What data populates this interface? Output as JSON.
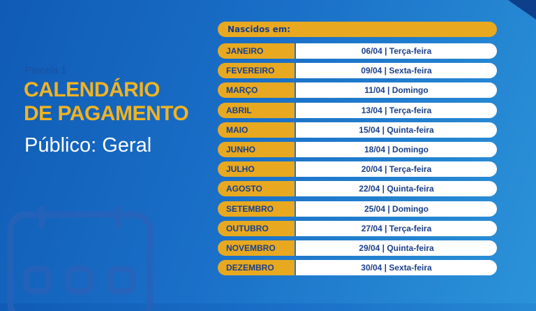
{
  "left": {
    "parcela": "Parcela 1",
    "title_line1": "CALENDÁRIO",
    "title_line2": "DE PAGAMENTO",
    "publico": "Público: Geral",
    "icon": "calendar-icon"
  },
  "table": {
    "header": "Nascidos em:",
    "rows": [
      {
        "month": "JANEIRO",
        "date": "06/04 | Terça-feira"
      },
      {
        "month": "FEVEREIRO",
        "date": "09/04 | Sexta-feira"
      },
      {
        "month": "MARÇO",
        "date": "11/04 | Domingo"
      },
      {
        "month": "ABRIL",
        "date": "13/04 | Terça-feira"
      },
      {
        "month": "MAIO",
        "date": "15/04 | Quinta-feira"
      },
      {
        "month": "JUNHO",
        "date": "18/04 | Domingo"
      },
      {
        "month": "JULHO",
        "date": "20/04 | Terça-feira"
      },
      {
        "month": "AGOSTO",
        "date": "22/04 | Quinta-feira"
      },
      {
        "month": "SETEMBRO",
        "date": "25/04 | Domingo"
      },
      {
        "month": "OUTUBRO",
        "date": "27/04 | Terça-feira"
      },
      {
        "month": "NOVEMBRO",
        "date": "29/04 | Quinta-feira"
      },
      {
        "month": "DEZEMBRO",
        "date": "30/04 | Sexta-feira"
      }
    ]
  },
  "colors": {
    "background": "#1a6fc7",
    "accent": "#e8a920",
    "text_dark": "#1b3f8a"
  }
}
